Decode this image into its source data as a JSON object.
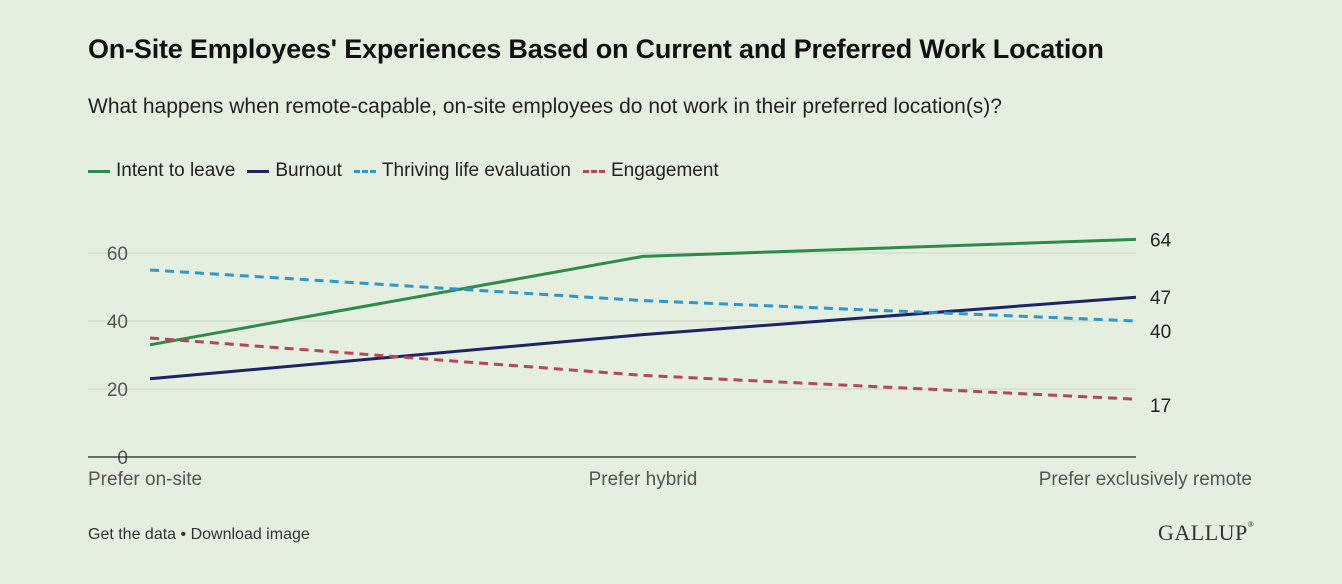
{
  "header": {
    "title": "On-Site Employees' Experiences Based on Current and Preferred Work Location",
    "subtitle": "What happens when remote-capable, on-site employees do not work in their preferred location(s)?"
  },
  "legend": [
    {
      "label": "Intent to leave",
      "color": "#2e8b4a",
      "style": "solid"
    },
    {
      "label": "Burnout",
      "color": "#1a2466",
      "style": "solid"
    },
    {
      "label": "Thriving life evaluation",
      "color": "#2f97c9",
      "style": "dashed"
    },
    {
      "label": "Engagement",
      "color": "#b5475a",
      "style": "dashed"
    }
  ],
  "chart_data": {
    "type": "line",
    "title": "On-Site Employees' Experiences Based on Current and Preferred Work Location",
    "categories": [
      "Prefer on-site",
      "Prefer hybrid",
      "Prefer exclusively remote"
    ],
    "series": [
      {
        "name": "Intent to leave",
        "values": [
          33,
          59,
          64
        ],
        "color": "#2e8b4a",
        "dashed": false,
        "end_label": "64"
      },
      {
        "name": "Burnout",
        "values": [
          23,
          36,
          47
        ],
        "color": "#1a2466",
        "dashed": false,
        "end_label": "47"
      },
      {
        "name": "Thriving life evaluation",
        "values": [
          55,
          46,
          40
        ],
        "color": "#2f97c9",
        "dashed": true,
        "end_label": "40"
      },
      {
        "name": "Engagement",
        "values": [
          35,
          24,
          17
        ],
        "color": "#b5475a",
        "dashed": true,
        "end_label": "17"
      }
    ],
    "yticks": [
      0,
      20,
      40,
      60
    ],
    "ylim": [
      0,
      70
    ],
    "grid": true,
    "legend_position": "top-left"
  },
  "footer": {
    "get_data": "Get the data",
    "separator": "•",
    "download": "Download image",
    "logo": "GALLUP",
    "logo_mark": "®"
  }
}
